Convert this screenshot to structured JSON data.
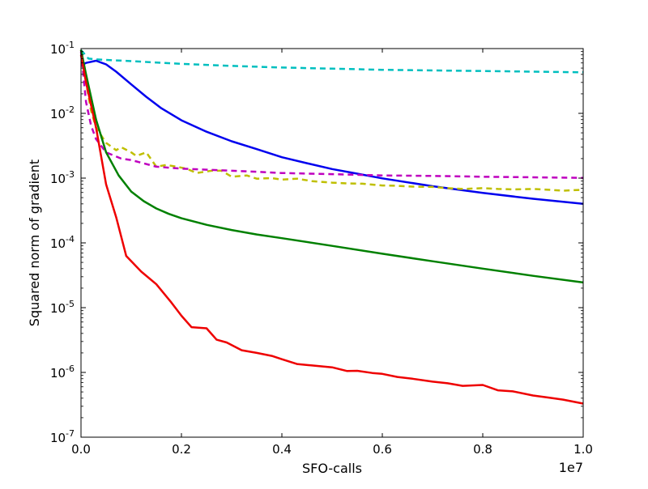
{
  "chart_data": {
    "type": "line",
    "title": "",
    "xlabel": "SFO-calls",
    "ylabel": "Squared norm of gradient",
    "x_multiplier": "1e7",
    "xlim": [
      0,
      1.0
    ],
    "ylim": [
      1e-07,
      0.1
    ],
    "yscale": "log",
    "grid": false,
    "legend": "none",
    "x_ticks": [
      "0.0",
      "0.2",
      "0.4",
      "0.6",
      "0.8",
      "1.0"
    ],
    "y_ticks": [
      {
        "base": "10",
        "exp": "-7"
      },
      {
        "base": "10",
        "exp": "-6"
      },
      {
        "base": "10",
        "exp": "-5"
      },
      {
        "base": "10",
        "exp": "-4"
      },
      {
        "base": "10",
        "exp": "-3"
      },
      {
        "base": "10",
        "exp": "-2"
      },
      {
        "base": "10",
        "exp": "-1"
      }
    ],
    "series": [
      {
        "color": "#00bfbf",
        "dash": "dashed",
        "x": [
          0,
          0.015,
          0.03,
          0.1,
          0.2,
          0.3,
          0.4,
          0.5,
          0.6,
          0.7,
          0.8,
          0.9,
          1.0
        ],
        "y": [
          0.095,
          0.07,
          0.068,
          0.064,
          0.058,
          0.054,
          0.051,
          0.049,
          0.047,
          0.046,
          0.045,
          0.044,
          0.043
        ]
      },
      {
        "color": "#0000ee",
        "dash": "solid",
        "x": [
          0,
          0.01,
          0.03,
          0.05,
          0.07,
          0.1,
          0.13,
          0.16,
          0.2,
          0.25,
          0.3,
          0.35,
          0.4,
          0.45,
          0.5,
          0.55,
          0.6,
          0.7,
          0.8,
          0.9,
          1.0
        ],
        "y": [
          0.055,
          0.06,
          0.065,
          0.057,
          0.044,
          0.028,
          0.018,
          0.012,
          0.0078,
          0.0052,
          0.0037,
          0.0028,
          0.0021,
          0.0017,
          0.00138,
          0.00117,
          0.00099,
          0.00075,
          0.00059,
          0.00048,
          0.0004
        ]
      },
      {
        "color": "#bfbf00",
        "dash": "dashed",
        "x": [
          0,
          0.01,
          0.02,
          0.03,
          0.05,
          0.07,
          0.08,
          0.1,
          0.11,
          0.13,
          0.15,
          0.17,
          0.19,
          0.21,
          0.23,
          0.26,
          0.28,
          0.3,
          0.33,
          0.35,
          0.38,
          0.4,
          0.43,
          0.46,
          0.5,
          0.53,
          0.56,
          0.6,
          0.63,
          0.66,
          0.7,
          0.73,
          0.76,
          0.8,
          0.83,
          0.86,
          0.9,
          0.93,
          0.96,
          1.0
        ],
        "y": [
          0.095,
          0.03,
          0.011,
          0.006,
          0.0035,
          0.0027,
          0.003,
          0.0025,
          0.0022,
          0.0025,
          0.0015,
          0.0016,
          0.0015,
          0.0014,
          0.0012,
          0.0013,
          0.0013,
          0.00105,
          0.0011,
          0.00098,
          0.001,
          0.00095,
          0.00098,
          0.0009,
          0.00085,
          0.00083,
          0.00082,
          0.00077,
          0.00076,
          0.00074,
          0.00073,
          0.0007,
          0.00068,
          0.0007,
          0.00068,
          0.00067,
          0.00068,
          0.00066,
          0.00064,
          0.00066
        ]
      },
      {
        "color": "#bf00bf",
        "dash": "dashed",
        "x": [
          0,
          0.01,
          0.02,
          0.03,
          0.05,
          0.08,
          0.1,
          0.15,
          0.2,
          0.25,
          0.3,
          0.35,
          0.4,
          0.5,
          0.6,
          0.7,
          0.8,
          0.9,
          1.0
        ],
        "y": [
          0.09,
          0.015,
          0.0065,
          0.004,
          0.0025,
          0.002,
          0.0019,
          0.0015,
          0.0014,
          0.00135,
          0.0013,
          0.00125,
          0.0012,
          0.00115,
          0.0011,
          0.00108,
          0.00105,
          0.00103,
          0.00101
        ]
      },
      {
        "color": "#008000",
        "dash": "solid",
        "x": [
          0,
          0.01,
          0.03,
          0.05,
          0.075,
          0.1,
          0.125,
          0.15,
          0.175,
          0.2,
          0.25,
          0.3,
          0.35,
          0.4,
          0.5,
          0.6,
          0.7,
          0.8,
          0.9,
          1.0
        ],
        "y": [
          0.095,
          0.04,
          0.008,
          0.0025,
          0.0011,
          0.00062,
          0.00044,
          0.00034,
          0.00028,
          0.00024,
          0.00019,
          0.000158,
          0.000135,
          0.000118,
          9e-05,
          6.8e-05,
          5.2e-05,
          4e-05,
          3.1e-05,
          2.45e-05
        ]
      },
      {
        "color": "#ee0000",
        "dash": "solid",
        "x": [
          0,
          0.01,
          0.03,
          0.05,
          0.07,
          0.09,
          0.12,
          0.15,
          0.18,
          0.2,
          0.22,
          0.25,
          0.27,
          0.29,
          0.32,
          0.35,
          0.38,
          0.4,
          0.43,
          0.46,
          0.5,
          0.53,
          0.55,
          0.58,
          0.6,
          0.63,
          0.66,
          0.7,
          0.73,
          0.76,
          0.8,
          0.83,
          0.86,
          0.9,
          0.93,
          0.96,
          1.0
        ],
        "y": [
          0.08,
          0.03,
          0.006,
          0.0008,
          0.00025,
          6.3e-05,
          3.6e-05,
          2.3e-05,
          1.2e-05,
          7.5e-06,
          5e-06,
          4.8e-06,
          3.2e-06,
          2.9e-06,
          2.2e-06,
          2e-06,
          1.8e-06,
          1.6e-06,
          1.35e-06,
          1.28e-06,
          1.2e-06,
          1.05e-06,
          1.06e-06,
          9.8e-07,
          9.5e-07,
          8.5e-07,
          8e-07,
          7.2e-07,
          6.8e-07,
          6.2e-07,
          6.4e-07,
          5.3e-07,
          5.1e-07,
          4.4e-07,
          4.1e-07,
          3.8e-07,
          3.3e-07
        ]
      }
    ]
  }
}
